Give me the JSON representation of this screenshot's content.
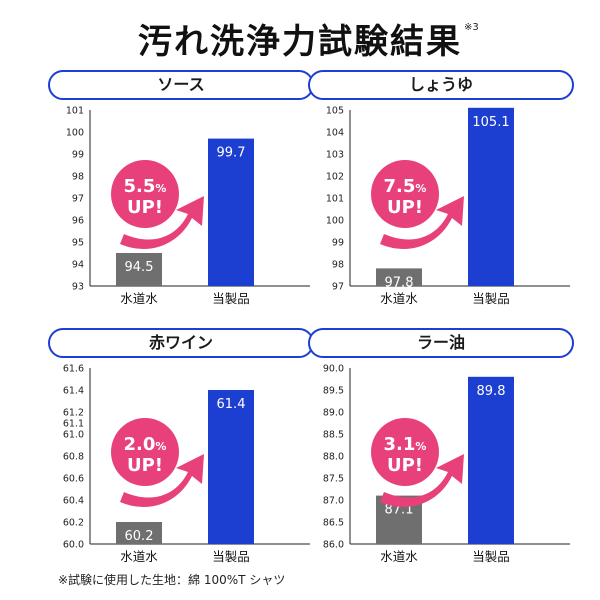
{
  "title": "汚れ洗浄力試験結果",
  "title_note": "※3",
  "footnote": "※試験に使用した生地：綿 100%T シャツ",
  "colors": {
    "accent": "#1c3fd1",
    "bar_tap_water": "#6f6f6f",
    "bar_product": "#1c3fd1",
    "badge": "#e8407a"
  },
  "chart_data": [
    {
      "type": "bar",
      "title": "ソース",
      "categories": [
        "水道水",
        "当製品"
      ],
      "values": [
        94.5,
        99.7
      ],
      "value_labels": [
        "94.5",
        "99.7"
      ],
      "ylim": [
        93,
        101
      ],
      "yticks": [
        "93",
        "94",
        "95",
        "96",
        "97",
        "98",
        "99",
        "100",
        "101"
      ],
      "badge": {
        "pct": "5.5",
        "unit": "%",
        "text": "UP!"
      }
    },
    {
      "type": "bar",
      "title": "しょうゆ",
      "categories": [
        "水道水",
        "当製品"
      ],
      "values": [
        97.8,
        105.1
      ],
      "value_labels": [
        "97.8",
        "105.1"
      ],
      "ylim": [
        97,
        105
      ],
      "yticks": [
        "97",
        "98",
        "99",
        "100",
        "101",
        "102",
        "103",
        "104",
        "105"
      ],
      "badge": {
        "pct": "7.5",
        "unit": "%",
        "text": "UP!"
      }
    },
    {
      "type": "bar",
      "title": "赤ワイン",
      "categories": [
        "水道水",
        "当製品"
      ],
      "values": [
        60.2,
        61.4
      ],
      "value_labels": [
        "60.2",
        "61.4"
      ],
      "ylim": [
        60.0,
        61.6
      ],
      "yticks": [
        "60.0",
        "60.2",
        "60.4",
        "60.6",
        "60.8",
        "61.0",
        "61.1",
        "61.2",
        "61.4",
        "61.6"
      ],
      "ytick_values": [
        60.0,
        60.2,
        60.4,
        60.6,
        60.8,
        61.0,
        61.1,
        61.2,
        61.4,
        61.6
      ],
      "badge": {
        "pct": "2.0",
        "unit": "%",
        "text": "UP!"
      }
    },
    {
      "type": "bar",
      "title": "ラー油",
      "categories": [
        "水道水",
        "当製品"
      ],
      "values": [
        87.1,
        89.8
      ],
      "value_labels": [
        "87.1",
        "89.8"
      ],
      "ylim": [
        86.0,
        90.0
      ],
      "yticks": [
        "86.0",
        "86.5",
        "87.0",
        "87.5",
        "88.0",
        "88.5",
        "89.0",
        "89.5",
        "90.0"
      ],
      "badge": {
        "pct": "3.1",
        "unit": "%",
        "text": "UP!"
      }
    }
  ]
}
